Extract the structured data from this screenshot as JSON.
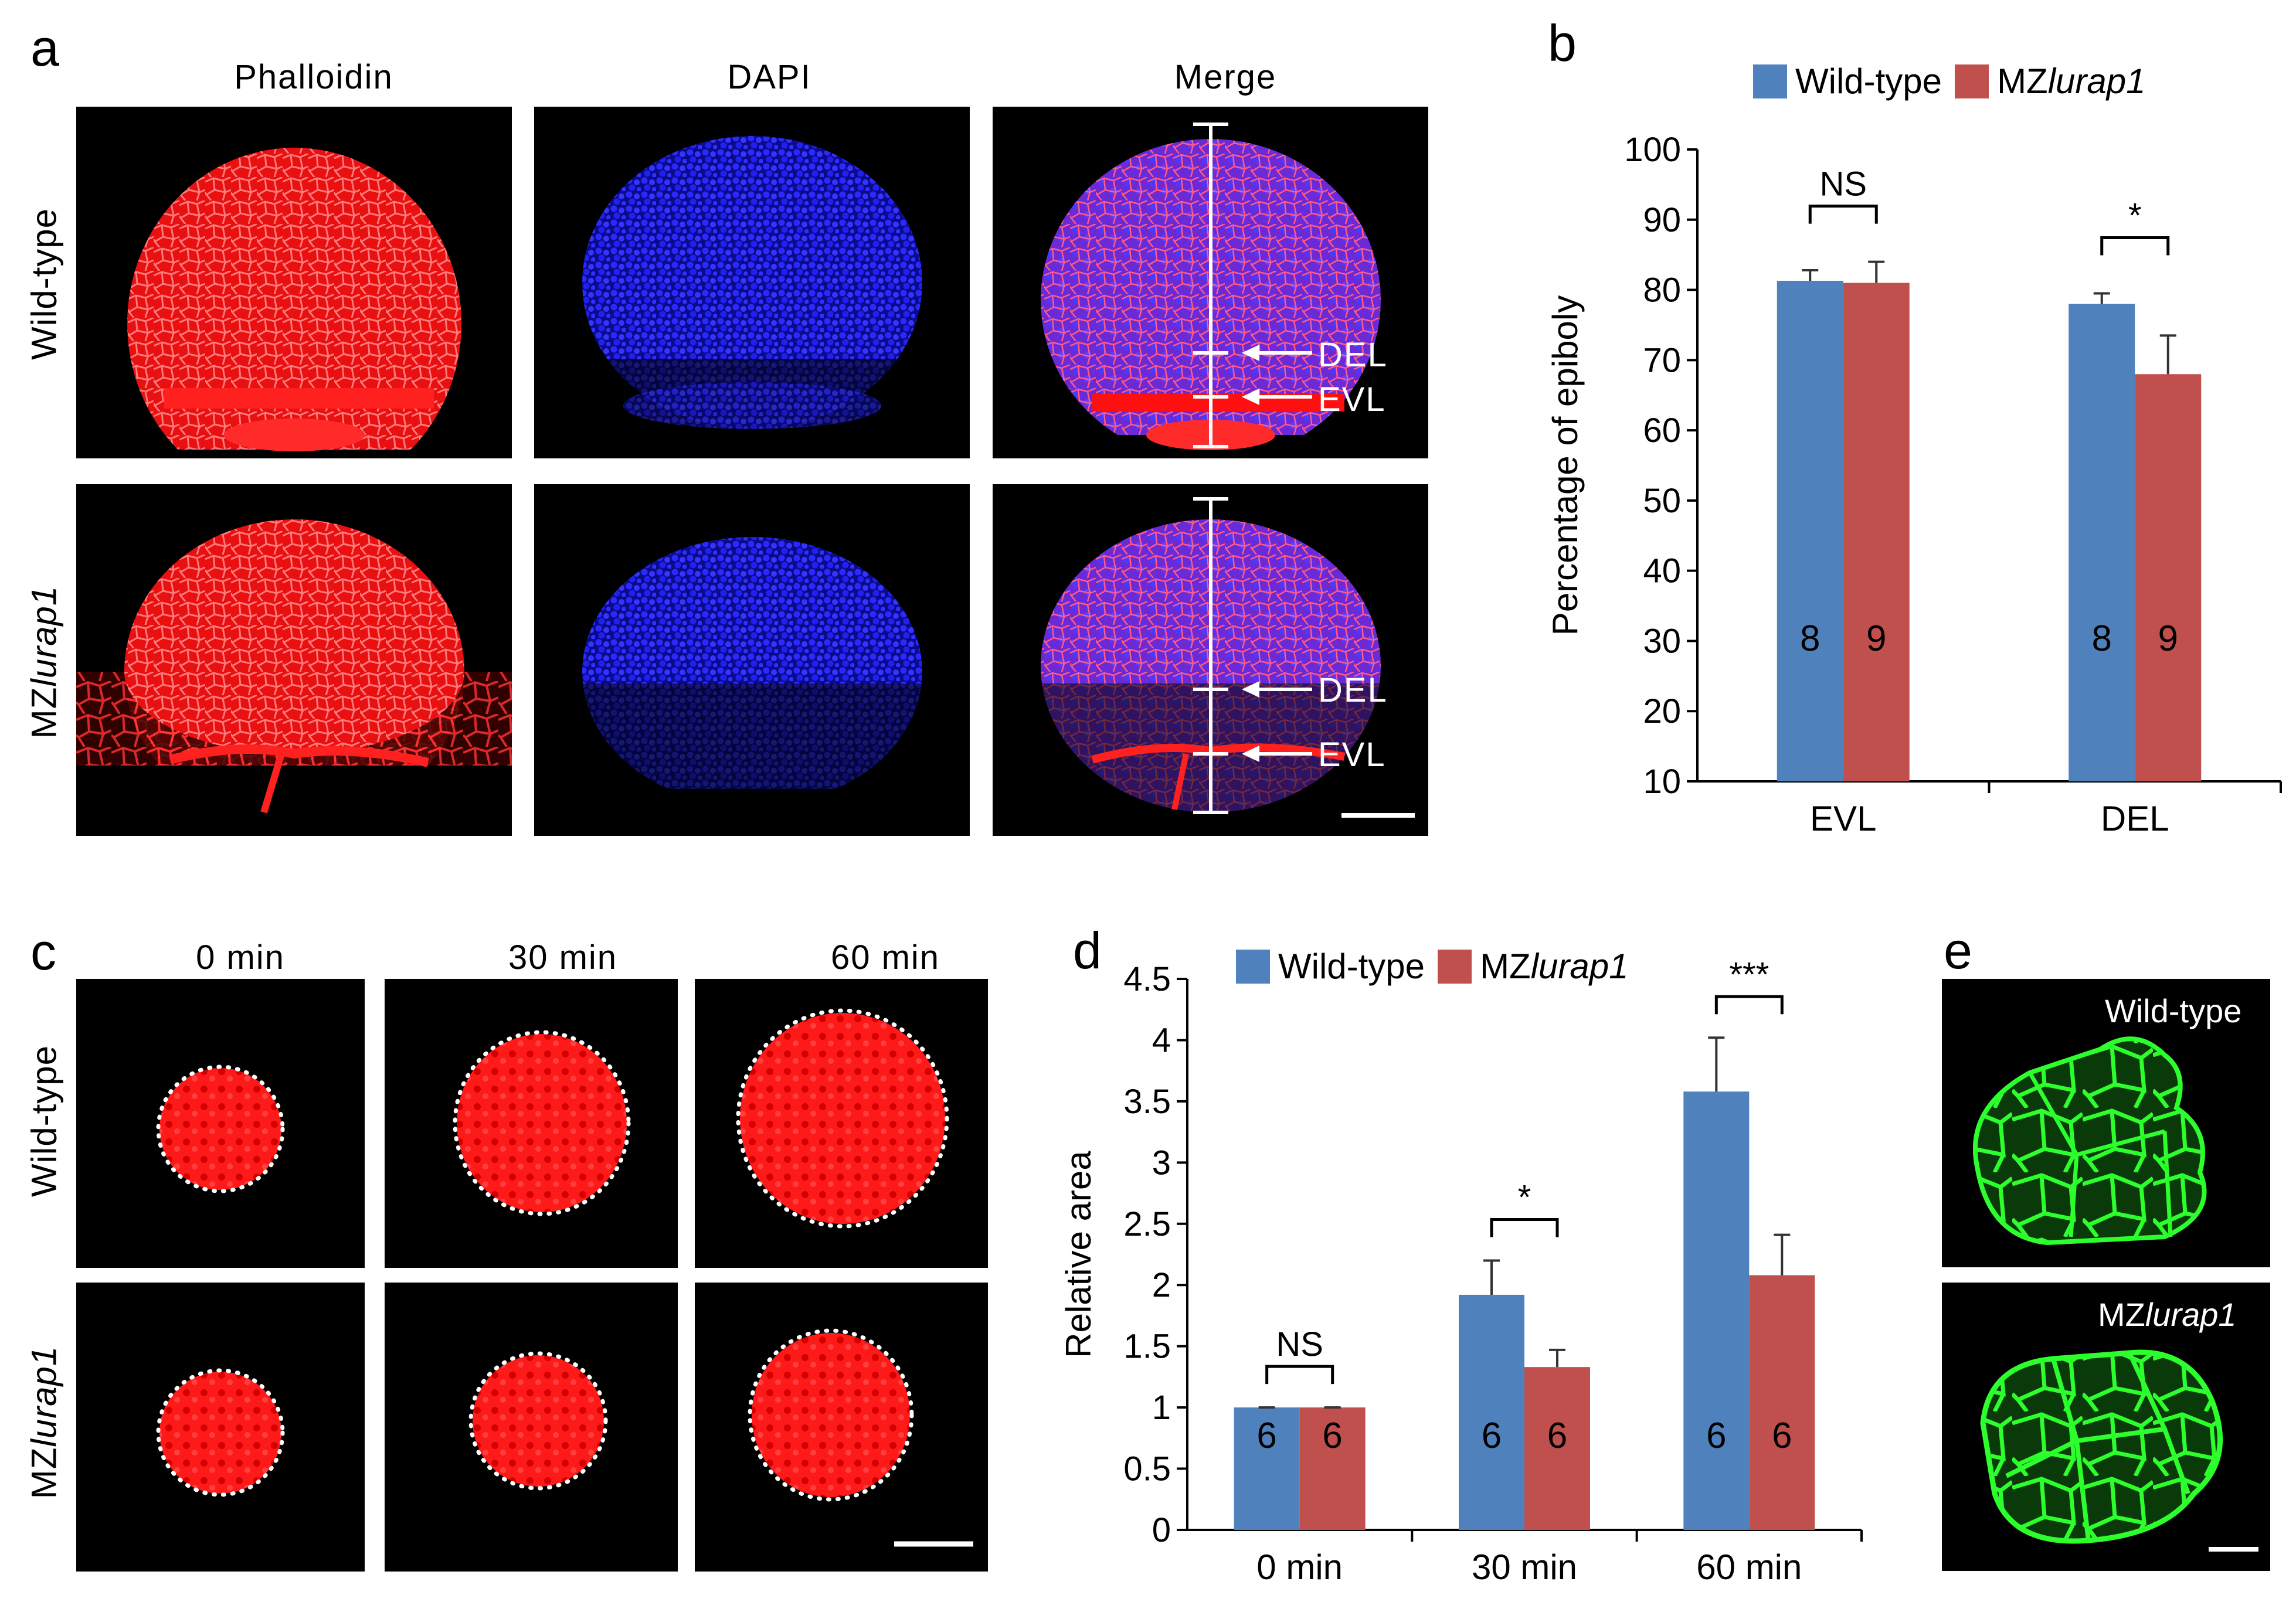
{
  "colors": {
    "wild": "#4f81bd",
    "mz": "#c0504d",
    "phalloidin": "#ff1a1a",
    "dapi": "#1a1aff",
    "gfp": "#22dd22"
  },
  "panels": {
    "a": {
      "letter": "a",
      "headers": [
        "Phalloidin",
        "DAPI",
        "Merge"
      ],
      "rows": [
        "Wild-type",
        "MZ",
        "lurap1"
      ],
      "labels": {
        "del": "DEL",
        "evl": "EVL"
      }
    },
    "b": {
      "letter": "b"
    },
    "c": {
      "letter": "c",
      "headers": [
        "0 min",
        "30 min",
        "60 min"
      ],
      "rows": [
        "Wild-type",
        "MZ",
        "lurap1"
      ]
    },
    "d": {
      "letter": "d"
    },
    "e": {
      "letter": "e",
      "labels": [
        "Wild-type",
        "MZ",
        "lurap1"
      ]
    }
  },
  "legend": {
    "wild": "Wild-type",
    "mz_prefix": "MZ",
    "mz_gene": "lurap1"
  },
  "chart_data": [
    {
      "id": "b",
      "type": "bar",
      "ylabel": "Percentage of epiboly",
      "xlabel": "",
      "ylim": [
        10,
        100
      ],
      "yticks": [
        "10",
        "20",
        "30",
        "40",
        "50",
        "60",
        "70",
        "80",
        "90",
        "100"
      ],
      "categories": [
        "EVL",
        "DEL"
      ],
      "series": [
        {
          "name": "Wild-type",
          "values": [
            81.3,
            78
          ],
          "errors": [
            1.5,
            1.5
          ],
          "n": [
            "8",
            "8"
          ]
        },
        {
          "name": "MZlurap1",
          "values": [
            81,
            68
          ],
          "errors": [
            3,
            5.5
          ],
          "n": [
            "9",
            "9"
          ]
        }
      ],
      "significance": [
        "NS",
        "*"
      ]
    },
    {
      "id": "d",
      "type": "bar",
      "ylabel": "Relative area",
      "xlabel": "",
      "ylim": [
        0,
        4.5
      ],
      "yticks": [
        "0",
        "0.5",
        "1",
        "1.5",
        "2",
        "2.5",
        "3",
        "3.5",
        "4",
        "4.5"
      ],
      "categories": [
        "0 min",
        "30 min",
        "60 min"
      ],
      "series": [
        {
          "name": "Wild-type",
          "values": [
            1,
            1.92,
            3.58
          ],
          "errors": [
            0,
            0.28,
            0.44
          ],
          "n": [
            "6",
            "6",
            "6"
          ]
        },
        {
          "name": "MZlurap1",
          "values": [
            1,
            1.33,
            2.08
          ],
          "errors": [
            0,
            0.14,
            0.33
          ],
          "n": [
            "6",
            "6",
            "6"
          ]
        }
      ],
      "significance": [
        "NS",
        "*",
        "***"
      ]
    }
  ]
}
